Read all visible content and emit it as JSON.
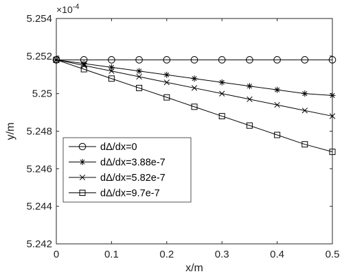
{
  "chart_data": {
    "type": "line",
    "title": "",
    "xlabel": "x/m",
    "ylabel": "y/m",
    "y_multiplier": "×10",
    "y_exponent": "-4",
    "xlim": [
      0,
      0.5
    ],
    "ylim": [
      5.242,
      5.254
    ],
    "grid": false,
    "legend_position": "bottom-left",
    "x_ticks": [
      "0",
      "0.1",
      "0.2",
      "0.3",
      "0.4",
      "0.5"
    ],
    "y_ticks": [
      "5.242",
      "5.244",
      "5.246",
      "5.248",
      "5.25",
      "5.252",
      "5.254"
    ],
    "x": [
      0,
      0.05,
      0.1,
      0.15,
      0.2,
      0.25,
      0.3,
      0.35,
      0.4,
      0.45,
      0.5
    ],
    "series": [
      {
        "name": "dΔ/dx=0",
        "marker": "circle",
        "values": [
          5.2518,
          5.2518,
          5.2518,
          5.2518,
          5.2518,
          5.2518,
          5.2518,
          5.2518,
          5.2518,
          5.2518,
          5.2518
        ]
      },
      {
        "name": "dΔ/dx=3.88e-7",
        "marker": "asterisk",
        "values": [
          5.2518,
          5.2516,
          5.2514,
          5.2512,
          5.251,
          5.2508,
          5.2506,
          5.2504,
          5.2502,
          5.25,
          5.2499
        ]
      },
      {
        "name": "dΔ/dx=5.82e-7",
        "marker": "x",
        "values": [
          5.2518,
          5.2515,
          5.2512,
          5.2509,
          5.2506,
          5.2503,
          5.25,
          5.2497,
          5.2494,
          5.2491,
          5.2488
        ]
      },
      {
        "name": "dΔ/dx=9.7e-7",
        "marker": "square",
        "values": [
          5.2518,
          5.2513,
          5.2508,
          5.2503,
          5.2498,
          5.2493,
          5.2488,
          5.2483,
          5.2478,
          5.2473,
          5.2469
        ]
      }
    ]
  }
}
